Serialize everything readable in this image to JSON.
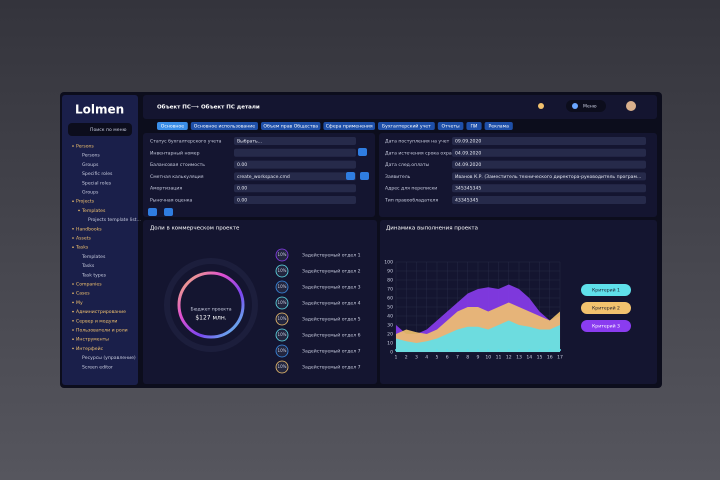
{
  "sidebar": {
    "logo": "Lolmen",
    "search": "Поиск по меню",
    "items": [
      "Persons",
      "Persons",
      "Groups",
      "Specific roles",
      "Special roles",
      "Groups",
      "Projects",
      "Templates",
      "Projects template list...",
      "Handbooks",
      "Assets",
      "Tasks",
      "Templates",
      "Tasks",
      "Task types",
      "Companies",
      "Cases",
      "My",
      "Администрирование",
      "Сервер и модули",
      "Пользователи и роли",
      "Инструменты",
      "Интерфейс",
      "Ресурсы (управление)",
      "Screen editor"
    ]
  },
  "header": {
    "crumb1": "Объект ПС",
    "crumb2": "Объект ПС детали",
    "menu": "Меню"
  },
  "tabs": [
    "Основное",
    "Основное использование",
    "Объем прав Общества",
    "Сфера применения",
    "Бухгалтерский учет",
    "Отчеты",
    "ПИ",
    "Реклама"
  ],
  "form": {
    "left": [
      {
        "label": "Статус бухгалтерского учета",
        "value": "Выбрать..."
      },
      {
        "label": "Инвентарный номер",
        "value": ""
      },
      {
        "label": "Балансовая стоимость",
        "value": "0.00"
      },
      {
        "label": "Сметная калькуляция",
        "value": "create_workspace.cmd"
      },
      {
        "label": "Амортизация",
        "value": "0.00"
      },
      {
        "label": "Рыночная оценка",
        "value": "0.00"
      }
    ],
    "right": [
      {
        "label": "Дата поступления на учет",
        "value": "09.09.2020"
      },
      {
        "label": "Дата истечения срока охраны",
        "value": "04.09.2020"
      },
      {
        "label": "Дата след.оплаты",
        "value": "04.09.2020"
      },
      {
        "label": "Заявитель",
        "value": "Иванов К.Р. (Заместитель технического директора-руководитель програм..."
      },
      {
        "label": "Адрес для переписки",
        "value": "345345345"
      },
      {
        "label": "Тип правообладателя",
        "value": "43345345"
      }
    ]
  },
  "shares": {
    "title": "Доли в коммерческом проекте",
    "center_label": "Бюджет проекта",
    "center_value": "$127 млн.",
    "items": [
      {
        "pct": "10%",
        "label": "Задействуемый отдел 1"
      },
      {
        "pct": "10%",
        "label": "Задействуемый отдел 2"
      },
      {
        "pct": "10%",
        "label": "Задействуемый отдел 3"
      },
      {
        "pct": "10%",
        "label": "Задействуемый отдел 4"
      },
      {
        "pct": "10%",
        "label": "Задействуемый отдел 5"
      },
      {
        "pct": "10%",
        "label": "Задействуемый отдел 6"
      },
      {
        "pct": "10%",
        "label": "Задействуемый отдел 7"
      },
      {
        "pct": "10%",
        "label": "Задействуемый отдел 7"
      }
    ]
  },
  "chart_data": {
    "type": "area",
    "title": "Динамика выполнения проекта",
    "x": [
      1,
      2,
      3,
      4,
      5,
      6,
      7,
      8,
      9,
      10,
      11,
      12,
      13,
      14,
      15,
      16,
      17
    ],
    "xlim": [
      1,
      17
    ],
    "ylim": [
      0,
      100
    ],
    "yticks": [
      0,
      10,
      20,
      30,
      40,
      50,
      60,
      70,
      80,
      90,
      100
    ],
    "grid": true,
    "series": [
      {
        "name": "Критерий 3",
        "color": "#8a3cf0",
        "values": [
          30,
          20,
          20,
          25,
          35,
          45,
          55,
          65,
          70,
          72,
          70,
          75,
          70,
          60,
          45,
          35,
          40
        ]
      },
      {
        "name": "Критерий 2",
        "color": "#f2c26e",
        "values": [
          20,
          25,
          22,
          20,
          25,
          35,
          45,
          50,
          50,
          45,
          50,
          55,
          50,
          45,
          40,
          35,
          45
        ]
      },
      {
        "name": "Критерий 1",
        "color": "#5fe0ea",
        "values": [
          15,
          12,
          10,
          12,
          15,
          20,
          25,
          28,
          28,
          25,
          30,
          35,
          30,
          28,
          25,
          25,
          30
        ]
      }
    ]
  }
}
